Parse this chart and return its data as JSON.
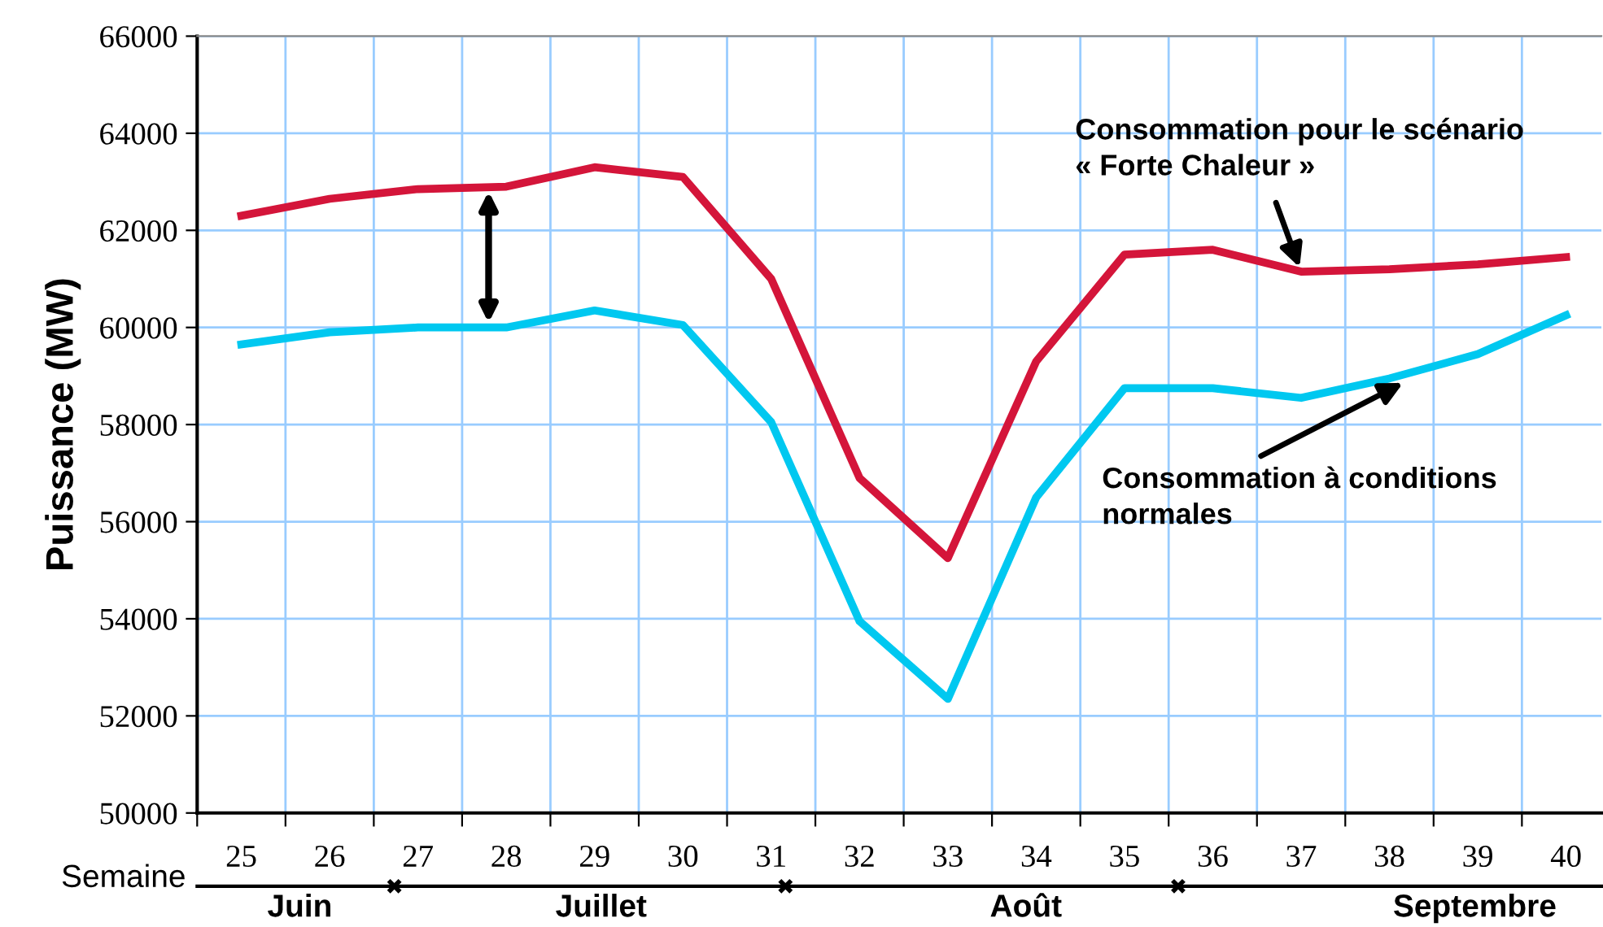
{
  "chart_data": {
    "type": "line",
    "ylabel": "Puissance (MW)",
    "xlabel": "Semaine",
    "x": [
      25,
      26,
      27,
      28,
      29,
      30,
      31,
      32,
      33,
      34,
      35,
      36,
      37,
      38,
      39,
      40
    ],
    "series": [
      {
        "color": "#d4153a",
        "values": [
          62300,
          62650,
          62850,
          62900,
          63300,
          63100,
          61000,
          56900,
          55250,
          59300,
          61500,
          61600,
          61150,
          61200,
          61300,
          61450
        ]
      },
      {
        "color": "#00c8f0",
        "values": [
          59650,
          59900,
          60000,
          60000,
          60350,
          60050,
          58050,
          53950,
          52350,
          56500,
          58750,
          58750,
          58550,
          58950,
          59450,
          60250
        ]
      }
    ],
    "xlim": [
      24.5,
      40.4
    ],
    "xticks": [
      {
        "value": 24.5,
        "label": null
      },
      25,
      {
        "value": 25.5,
        "label": null
      },
      26,
      {
        "value": 26.5,
        "label": null
      },
      27,
      {
        "value": 27.5,
        "label": null
      },
      28,
      {
        "value": 28.5,
        "label": null
      },
      29,
      {
        "value": 29.5,
        "label": null
      },
      30,
      {
        "value": 30.5,
        "label": null
      },
      31,
      {
        "value": 31.5,
        "label": null
      },
      32,
      {
        "value": 32.5,
        "label": null
      },
      33,
      {
        "value": 33.5,
        "label": null
      },
      34,
      {
        "value": 34.5,
        "label": null
      },
      35,
      {
        "value": 35.5,
        "label": null
      },
      36,
      {
        "value": 36.5,
        "label": null
      },
      37,
      {
        "value": 37.5,
        "label": null
      },
      38,
      {
        "value": 38.5,
        "label": null
      },
      39,
      {
        "value": 39.5,
        "label": null
      },
      40
    ],
    "ylim": [
      50000,
      66000
    ],
    "yticks": [
      50000,
      52000,
      54000,
      56000,
      58000,
      60000,
      62000,
      64000,
      66000
    ],
    "grid": true,
    "annotations": [
      {
        "text": "Consommation pour le scénario\n« Forte Chaleur »",
        "x": 37,
        "y": 61150
      },
      {
        "text": "Consommation à conditions\nnormales",
        "x": 38.2,
        "y": 58900
      },
      "Juin",
      "Juillet",
      "Août",
      "Septembre"
    ]
  }
}
